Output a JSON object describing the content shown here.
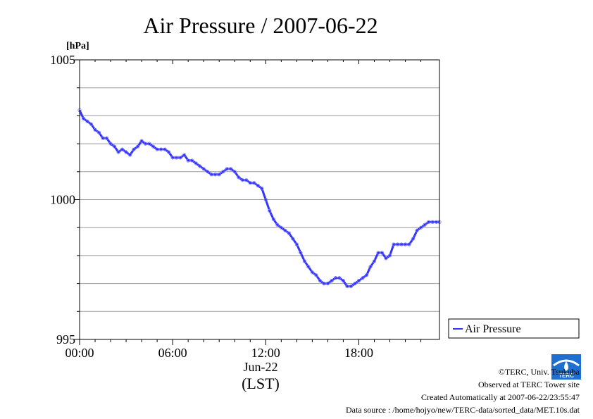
{
  "chart_data": {
    "type": "line",
    "title": "Air Pressure / 2007-06-22",
    "ylabel": "[hPa]",
    "ylim": [
      995,
      1005
    ],
    "y_ticks": [
      {
        "value": 995,
        "label": "995"
      },
      {
        "value": 1000,
        "label": "1000"
      },
      {
        "value": 1005,
        "label": "1005"
      }
    ],
    "y_gridlines": [
      996,
      997,
      998,
      999,
      1000,
      1001,
      1002,
      1003,
      1004
    ],
    "xlim": [
      0,
      23.2
    ],
    "x_ticks": [
      {
        "hour": 0,
        "label": "00:00"
      },
      {
        "hour": 6,
        "label": "06:00"
      },
      {
        "hour": 12,
        "label": "12:00"
      },
      {
        "hour": 18,
        "label": "18:00"
      }
    ],
    "x_date_label": "Jun-22",
    "x_unit_label": "(LST)",
    "grid": "horizontal",
    "legend_position": "right-bottom",
    "series": [
      {
        "name": "Air Pressure",
        "color": "#3333ff",
        "hours": [
          0.0,
          0.25,
          0.5,
          0.75,
          1.0,
          1.25,
          1.5,
          1.75,
          2.0,
          2.25,
          2.5,
          2.75,
          3.0,
          3.25,
          3.5,
          3.75,
          4.0,
          4.25,
          4.5,
          4.75,
          5.0,
          5.25,
          5.5,
          5.75,
          6.0,
          6.25,
          6.5,
          6.75,
          7.0,
          7.25,
          7.5,
          7.75,
          8.0,
          8.25,
          8.5,
          8.75,
          9.0,
          9.25,
          9.5,
          9.75,
          10.0,
          10.25,
          10.5,
          10.75,
          11.0,
          11.25,
          11.5,
          11.75,
          12.0,
          12.25,
          12.5,
          12.75,
          13.0,
          13.25,
          13.5,
          13.75,
          14.0,
          14.25,
          14.5,
          14.75,
          15.0,
          15.25,
          15.5,
          15.75,
          16.0,
          16.25,
          16.5,
          16.75,
          17.0,
          17.25,
          17.5,
          17.75,
          18.0,
          18.25,
          18.5,
          18.75,
          19.0,
          19.25,
          19.5,
          19.75,
          20.0,
          20.25,
          20.5,
          20.75,
          21.0,
          21.25,
          21.5,
          21.75,
          22.0,
          22.25,
          22.5,
          22.75,
          23.0,
          23.2
        ],
        "values": [
          1003.2,
          1002.9,
          1002.8,
          1002.7,
          1002.5,
          1002.4,
          1002.2,
          1002.2,
          1002.0,
          1001.9,
          1001.7,
          1001.8,
          1001.7,
          1001.6,
          1001.8,
          1001.9,
          1002.1,
          1002.0,
          1002.0,
          1001.9,
          1001.8,
          1001.8,
          1001.8,
          1001.7,
          1001.5,
          1001.5,
          1001.5,
          1001.6,
          1001.4,
          1001.4,
          1001.3,
          1001.2,
          1001.1,
          1001.0,
          1000.9,
          1000.9,
          1000.9,
          1001.0,
          1001.1,
          1001.1,
          1001.0,
          1000.8,
          1000.7,
          1000.7,
          1000.6,
          1000.6,
          1000.5,
          1000.4,
          1000.0,
          999.6,
          999.3,
          999.1,
          999.0,
          998.9,
          998.8,
          998.6,
          998.4,
          998.1,
          997.8,
          997.6,
          997.4,
          997.3,
          997.1,
          997.0,
          997.0,
          997.1,
          997.2,
          997.2,
          997.1,
          996.9,
          996.9,
          997.0,
          997.1,
          997.2,
          997.3,
          997.6,
          997.8,
          998.1,
          998.1,
          997.9,
          998.0,
          998.4,
          998.4,
          998.4,
          998.4,
          998.4,
          998.6,
          998.9,
          999.0,
          999.1,
          999.2,
          999.2,
          999.2,
          999.2
        ]
      }
    ]
  },
  "credits": {
    "copyright": "©TERC, Univ. Tsukuba",
    "observed": "Observed at TERC Tower site",
    "created": "Created Automatically at 2007-06-22/23:55:47",
    "source": "Data source : /home/hojyo/new/TERC-data/sorted_data/MET.10s.dat"
  },
  "logo": {
    "text": "TERC",
    "color": "#1e6fd0"
  }
}
